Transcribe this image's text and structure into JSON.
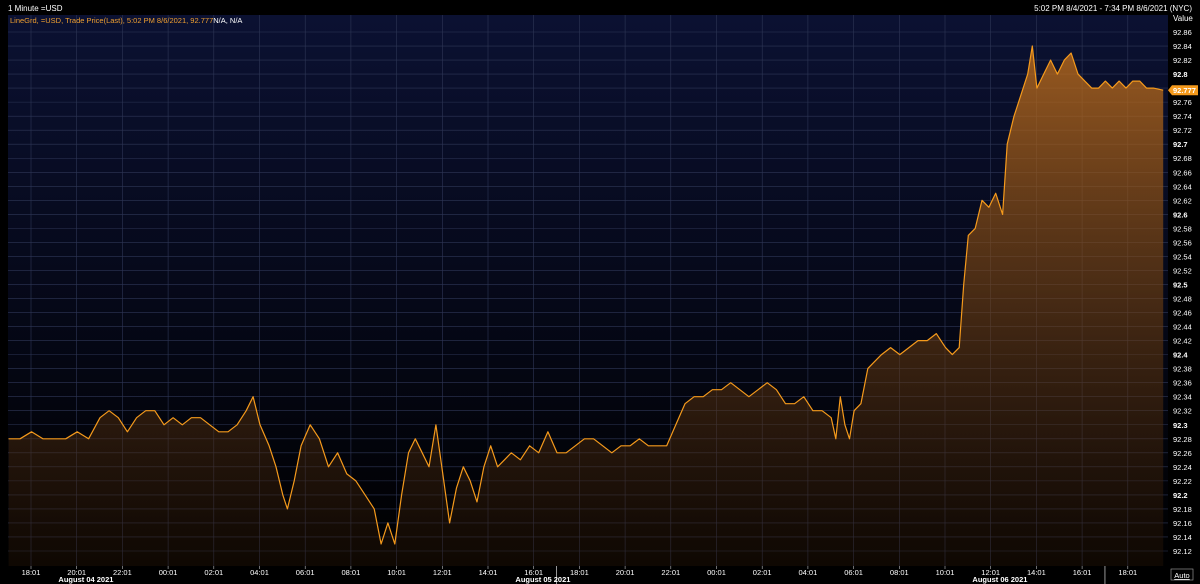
{
  "header": {
    "title": "1 Minute =USD",
    "range": "5:02 PM 8/4/2021 - 7:34 PM 8/6/2021 (NYC)",
    "subtitle": "LineGrd, =USD, Trade Price(Last), 5:02 PM 8/6/2021, 92.777",
    "subtitle_extra": "N/A, N/A"
  },
  "y_axis": {
    "title": "Value",
    "auto_label": "Auto",
    "last_value_label": "92.777"
  },
  "colors": {
    "background_top": "#0a1030",
    "background_bottom": "#000000",
    "line": "#f59a1c",
    "grid": "#2e3656",
    "marker_bg": "#f59a1c"
  },
  "chart_data": {
    "type": "area",
    "title": "",
    "xlabel": "",
    "ylabel": "",
    "ylim": [
      92.12,
      92.86
    ],
    "y_ticks": [
      "92.86",
      "92.84",
      "92.82",
      "92.8",
      "92.78",
      "92.76",
      "92.74",
      "92.72",
      "92.7",
      "92.68",
      "92.66",
      "92.64",
      "92.62",
      "92.6",
      "92.58",
      "92.56",
      "92.54",
      "92.52",
      "92.5",
      "92.48",
      "92.46",
      "92.44",
      "92.42",
      "92.4",
      "92.38",
      "92.36",
      "92.34",
      "92.32",
      "92.3",
      "92.28",
      "92.26",
      "92.24",
      "92.22",
      "92.2",
      "92.18",
      "92.16",
      "92.14",
      "92.12"
    ],
    "x_ticks": [
      "18:01",
      "20:01",
      "22:01",
      "00:01",
      "02:01",
      "04:01",
      "06:01",
      "08:01",
      "10:01",
      "12:01",
      "14:01",
      "16:01",
      "18:01",
      "20:01",
      "22:01",
      "00:01",
      "02:01",
      "04:01",
      "06:01",
      "08:01",
      "10:01",
      "12:01",
      "14:01",
      "16:01",
      "18:01"
    ],
    "day_labels": [
      {
        "label": "August 04 2021",
        "at": 2.2
      },
      {
        "label": "August 05 2021",
        "at": 12.2
      },
      {
        "label": "August 06 2021",
        "at": 22.2
      }
    ],
    "x_unit": "hours since 17:02 ET 8/4/2021",
    "x_max": 50.53,
    "series": [
      {
        "points": [
          [
            0,
            92.28
          ],
          [
            0.5,
            92.28
          ],
          [
            1,
            92.29
          ],
          [
            1.5,
            92.28
          ],
          [
            2,
            92.28
          ],
          [
            2.5,
            92.28
          ],
          [
            3,
            92.29
          ],
          [
            3.5,
            92.28
          ],
          [
            4,
            92.31
          ],
          [
            4.4,
            92.32
          ],
          [
            4.8,
            92.31
          ],
          [
            5.2,
            92.29
          ],
          [
            5.6,
            92.31
          ],
          [
            6,
            92.32
          ],
          [
            6.4,
            92.32
          ],
          [
            6.8,
            92.3
          ],
          [
            7.2,
            92.31
          ],
          [
            7.6,
            92.3
          ],
          [
            8.0,
            92.31
          ],
          [
            8.4,
            92.31
          ],
          [
            8.8,
            92.3
          ],
          [
            9.2,
            92.29
          ],
          [
            9.6,
            92.29
          ],
          [
            10.0,
            92.3
          ],
          [
            10.4,
            92.32
          ],
          [
            10.7,
            92.34
          ],
          [
            11.0,
            92.3
          ],
          [
            11.4,
            92.27
          ],
          [
            11.7,
            92.24
          ],
          [
            12.0,
            92.2
          ],
          [
            12.2,
            92.18
          ],
          [
            12.5,
            92.22
          ],
          [
            12.8,
            92.27
          ],
          [
            13.2,
            92.3
          ],
          [
            13.6,
            92.28
          ],
          [
            14.0,
            92.24
          ],
          [
            14.4,
            92.26
          ],
          [
            14.8,
            92.23
          ],
          [
            15.2,
            92.22
          ],
          [
            15.6,
            92.2
          ],
          [
            16.0,
            92.18
          ],
          [
            16.3,
            92.13
          ],
          [
            16.6,
            92.16
          ],
          [
            16.9,
            92.13
          ],
          [
            17.2,
            92.2
          ],
          [
            17.5,
            92.26
          ],
          [
            17.8,
            92.28
          ],
          [
            18.1,
            92.26
          ],
          [
            18.4,
            92.24
          ],
          [
            18.7,
            92.3
          ],
          [
            19.0,
            92.23
          ],
          [
            19.3,
            92.16
          ],
          [
            19.6,
            92.21
          ],
          [
            19.9,
            92.24
          ],
          [
            20.2,
            92.22
          ],
          [
            20.5,
            92.19
          ],
          [
            20.8,
            92.24
          ],
          [
            21.1,
            92.27
          ],
          [
            21.4,
            92.24
          ],
          [
            21.7,
            92.25
          ],
          [
            22.0,
            92.26
          ],
          [
            22.4,
            92.25
          ],
          [
            22.8,
            92.27
          ],
          [
            23.2,
            92.26
          ],
          [
            23.6,
            92.29
          ],
          [
            24.0,
            92.26
          ],
          [
            24.4,
            92.26
          ],
          [
            24.8,
            92.27
          ],
          [
            25.2,
            92.28
          ],
          [
            25.6,
            92.28
          ],
          [
            26.0,
            92.27
          ],
          [
            26.4,
            92.26
          ],
          [
            26.8,
            92.27
          ],
          [
            27.2,
            92.27
          ],
          [
            27.6,
            92.28
          ],
          [
            28.0,
            92.27
          ],
          [
            28.4,
            92.27
          ],
          [
            28.8,
            92.27
          ],
          [
            29.2,
            92.3
          ],
          [
            29.6,
            92.33
          ],
          [
            30.0,
            92.34
          ],
          [
            30.4,
            92.34
          ],
          [
            30.8,
            92.35
          ],
          [
            31.2,
            92.35
          ],
          [
            31.6,
            92.36
          ],
          [
            32.0,
            92.35
          ],
          [
            32.4,
            92.34
          ],
          [
            32.8,
            92.35
          ],
          [
            33.2,
            92.36
          ],
          [
            33.6,
            92.35
          ],
          [
            34.0,
            92.33
          ],
          [
            34.4,
            92.33
          ],
          [
            34.8,
            92.34
          ],
          [
            35.2,
            92.32
          ],
          [
            35.6,
            92.32
          ],
          [
            36.0,
            92.31
          ],
          [
            36.2,
            92.28
          ],
          [
            36.4,
            92.34
          ],
          [
            36.6,
            92.3
          ],
          [
            36.8,
            92.28
          ],
          [
            37.0,
            92.32
          ],
          [
            37.3,
            92.33
          ],
          [
            37.6,
            92.38
          ],
          [
            37.9,
            92.39
          ],
          [
            38.2,
            92.4
          ],
          [
            38.6,
            92.41
          ],
          [
            39.0,
            92.4
          ],
          [
            39.4,
            92.41
          ],
          [
            39.8,
            92.42
          ],
          [
            40.2,
            92.42
          ],
          [
            40.6,
            92.43
          ],
          [
            41.0,
            92.41
          ],
          [
            41.3,
            92.4
          ],
          [
            41.6,
            92.41
          ],
          [
            41.8,
            92.5
          ],
          [
            42.0,
            92.57
          ],
          [
            42.3,
            92.58
          ],
          [
            42.6,
            92.62
          ],
          [
            42.9,
            92.61
          ],
          [
            43.2,
            92.63
          ],
          [
            43.5,
            92.6
          ],
          [
            43.7,
            92.7
          ],
          [
            44.0,
            92.74
          ],
          [
            44.3,
            92.77
          ],
          [
            44.6,
            92.8
          ],
          [
            44.8,
            92.84
          ],
          [
            45.0,
            92.78
          ],
          [
            45.3,
            92.8
          ],
          [
            45.6,
            92.82
          ],
          [
            45.9,
            92.8
          ],
          [
            46.2,
            92.82
          ],
          [
            46.5,
            92.83
          ],
          [
            46.8,
            92.8
          ],
          [
            47.1,
            92.79
          ],
          [
            47.4,
            92.78
          ],
          [
            47.7,
            92.78
          ],
          [
            48.0,
            92.79
          ],
          [
            48.3,
            92.78
          ],
          [
            48.6,
            92.79
          ],
          [
            48.9,
            92.78
          ],
          [
            49.2,
            92.79
          ],
          [
            49.5,
            92.79
          ],
          [
            49.8,
            92.78
          ],
          [
            50.1,
            92.78
          ],
          [
            50.53,
            92.777
          ]
        ]
      }
    ]
  }
}
